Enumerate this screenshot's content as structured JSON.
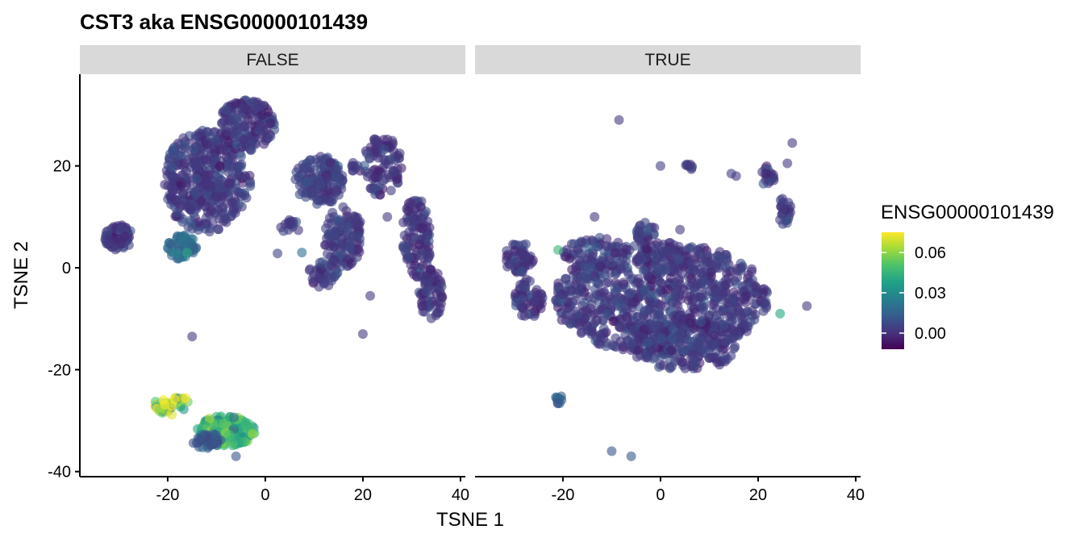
{
  "chart_data": {
    "type": "scatter",
    "title": "CST3  aka ENSG00000101439",
    "xlabel": "TSNE 1",
    "ylabel": "TSNE 2",
    "xlim": [
      -38,
      41
    ],
    "ylim": [
      -41,
      38
    ],
    "x_ticks": [
      -20,
      0,
      20,
      40
    ],
    "y_ticks": [
      -40,
      -20,
      0,
      20
    ],
    "x_tick_labels": [
      "-20",
      "0",
      "20",
      "40"
    ],
    "y_tick_labels": [
      "-40",
      "-20",
      "0",
      "20"
    ],
    "facets": [
      "FALSE",
      "TRUE"
    ],
    "grid": false,
    "legend": {
      "title": "ENSG00000101439",
      "position": "right",
      "type": "colorbar",
      "range": [
        -0.012,
        0.075
      ],
      "breaks": [
        0.0,
        0.03,
        0.06
      ],
      "break_labels": [
        "0.00",
        "0.03",
        "0.06"
      ],
      "palette": "viridis",
      "colors": [
        "#440154",
        "#46337E",
        "#365C8D",
        "#277F8E",
        "#1FA187",
        "#4AC16D",
        "#9FDA3A",
        "#FDE725"
      ]
    },
    "panels": [
      {
        "facet": "FALSE",
        "clusters": [
          {
            "cx": -12,
            "cy": 17,
            "rx": 9,
            "ry": 10,
            "n": 420,
            "value": 0.003
          },
          {
            "cx": -4,
            "cy": 28,
            "rx": 6,
            "ry": 5,
            "n": 160,
            "value": 0.002
          },
          {
            "cx": 11,
            "cy": 17,
            "rx": 5,
            "ry": 5,
            "n": 140,
            "value": 0.004
          },
          {
            "cx": 16,
            "cy": 6,
            "rx": 4,
            "ry": 6,
            "n": 120,
            "value": 0.003
          },
          {
            "cx": 12,
            "cy": -1,
            "rx": 3,
            "ry": 3,
            "n": 40,
            "value": 0.004
          },
          {
            "cx": 24,
            "cy": 20,
            "rx": 4,
            "ry": 6,
            "n": 90,
            "value": 0.002
          },
          {
            "cx": 31,
            "cy": 6,
            "rx": 3,
            "ry": 8,
            "n": 110,
            "value": 0.002
          },
          {
            "cx": 34,
            "cy": -5,
            "rx": 2.5,
            "ry": 5,
            "n": 70,
            "value": 0.002
          },
          {
            "cx": -30,
            "cy": 6,
            "rx": 3,
            "ry": 2.5,
            "n": 70,
            "value": 0.002
          },
          {
            "cx": -17,
            "cy": 4,
            "rx": 3,
            "ry": 2.5,
            "n": 60,
            "value": 0.018
          },
          {
            "cx": -19,
            "cy": -27,
            "rx": 4,
            "ry": 2,
            "n": 40,
            "value": 0.062
          },
          {
            "cx": -8,
            "cy": -32,
            "rx": 6,
            "ry": 3,
            "n": 170,
            "value": 0.045
          },
          {
            "cx": -12,
            "cy": -34,
            "rx": 3,
            "ry": 1.5,
            "n": 40,
            "value": 0.012
          },
          {
            "cx": 5,
            "cy": 8,
            "rx": 2,
            "ry": 1.5,
            "n": 15,
            "value": 0.003
          },
          {
            "cx": 19,
            "cy": 20,
            "rx": 1.5,
            "ry": 1.5,
            "n": 10,
            "value": 0.002
          }
        ],
        "outliers": [
          {
            "x": -15,
            "y": -13.5,
            "value": 0.003
          },
          {
            "x": 20,
            "y": -13,
            "value": 0.003
          },
          {
            "x": 21.5,
            "y": -5.5,
            "value": 0.003
          },
          {
            "x": 25,
            "y": 10,
            "value": 0.003
          },
          {
            "x": 2.5,
            "y": 2.8,
            "value": 0.005
          },
          {
            "x": 7.5,
            "y": 3,
            "value": 0.02
          },
          {
            "x": -16,
            "y": 3,
            "value": 0.04
          },
          {
            "x": -6,
            "y": -37,
            "value": 0.01
          }
        ]
      },
      {
        "facet": "TRUE",
        "clusters": [
          {
            "cx": 0,
            "cy": -6,
            "rx": 22,
            "ry": 11,
            "n": 900,
            "value": 0.003
          },
          {
            "cx": 5,
            "cy": -15,
            "rx": 12,
            "ry": 5,
            "n": 180,
            "value": 0.003
          },
          {
            "cx": -29,
            "cy": 2,
            "rx": 3,
            "ry": 3,
            "n": 60,
            "value": 0.002
          },
          {
            "cx": -27,
            "cy": -6,
            "rx": 3,
            "ry": 4,
            "n": 60,
            "value": 0.002
          },
          {
            "cx": -13,
            "cy": 3,
            "rx": 7,
            "ry": 3,
            "n": 70,
            "value": 0.004
          },
          {
            "cx": -3,
            "cy": 7,
            "rx": 2,
            "ry": 2,
            "n": 25,
            "value": 0.003
          },
          {
            "cx": 6,
            "cy": 20,
            "rx": 1,
            "ry": 1,
            "n": 8,
            "value": 0.003
          },
          {
            "cx": 22,
            "cy": 18,
            "rx": 1.5,
            "ry": 2,
            "n": 20,
            "value": 0.004
          },
          {
            "cx": 25.5,
            "cy": 11,
            "rx": 1.5,
            "ry": 3,
            "n": 25,
            "value": 0.002
          },
          {
            "cx": -21,
            "cy": -26,
            "rx": 1.5,
            "ry": 1,
            "n": 10,
            "value": 0.015
          }
        ],
        "outliers": [
          {
            "x": -8.5,
            "y": 29,
            "value": 0.002
          },
          {
            "x": 27,
            "y": 24.5,
            "value": 0.003
          },
          {
            "x": 26,
            "y": 20.5,
            "value": 0.003
          },
          {
            "x": 30,
            "y": -7.5,
            "value": 0.002
          },
          {
            "x": -10,
            "y": -36,
            "value": 0.01
          },
          {
            "x": -6,
            "y": -37,
            "value": 0.012
          },
          {
            "x": -13.5,
            "y": 10,
            "value": 0.003
          },
          {
            "x": 4,
            "y": 7.5,
            "value": 0.003
          },
          {
            "x": 24.5,
            "y": -9,
            "value": 0.04
          },
          {
            "x": -21,
            "y": 3.5,
            "value": 0.045
          },
          {
            "x": 14.5,
            "y": 18.5,
            "value": 0.004
          },
          {
            "x": 0,
            "y": 20,
            "value": 0.004
          },
          {
            "x": 15.5,
            "y": 18,
            "value": 0.003
          }
        ]
      }
    ]
  }
}
